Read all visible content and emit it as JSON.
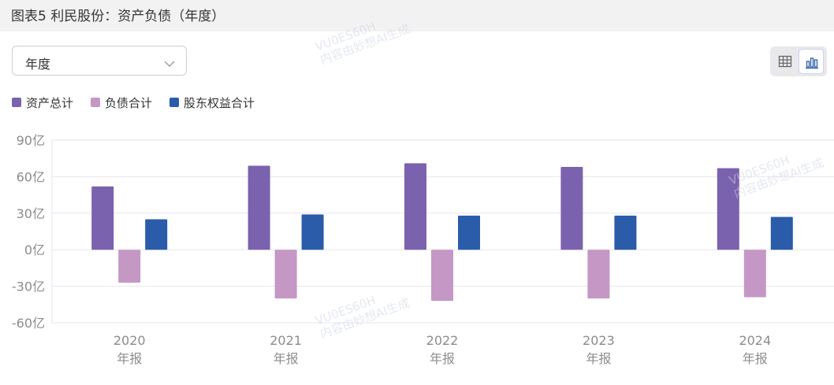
{
  "header": {
    "title": "图表5 利民股份：资产负债（年度）"
  },
  "period_select": {
    "value": "年度"
  },
  "colors": {
    "assets": "#7b62ae",
    "liabilities": "#c597c5",
    "equity": "#2a5caa",
    "grid": "#e6e6f0",
    "axis_text": "#8c8c8c"
  },
  "watermarks": [
    {
      "line1": "VU0ES60H",
      "line2": "内容由妙想AI生成"
    },
    {
      "line1": "VU0ES60H",
      "line2": "内容由妙想AI生成"
    },
    {
      "line1": "VU0ES60H",
      "line2": "内容由妙想AI生成"
    }
  ],
  "chart_data": {
    "type": "bar",
    "categories": [
      "2020",
      "2021",
      "2022",
      "2023",
      "2024"
    ],
    "category_sublabel": "年报",
    "series": [
      {
        "name": "资产总计",
        "values": [
          52,
          69,
          71,
          68,
          67
        ]
      },
      {
        "name": "负债合计",
        "values": [
          -27,
          -40,
          -42,
          -40,
          -39
        ]
      },
      {
        "name": "股东权益合计",
        "values": [
          25,
          29,
          28,
          28,
          27
        ]
      }
    ],
    "y_ticks": [
      "90亿",
      "60亿",
      "30亿",
      "0亿",
      "-30亿",
      "-60亿"
    ],
    "ylim": [
      -60,
      90
    ],
    "y_unit": "亿",
    "grid": true,
    "legend_position": "top-left"
  }
}
